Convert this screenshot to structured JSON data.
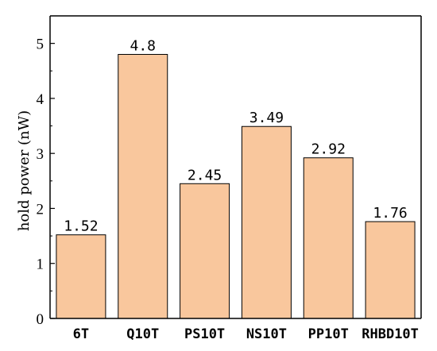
{
  "chart_data": {
    "type": "bar",
    "title": "",
    "xlabel": "",
    "ylabel": "hold power (nW)",
    "categories": [
      "6T",
      "Q10T",
      "PS10T",
      "NS10T",
      "PP10T",
      "RHBD10T"
    ],
    "values": [
      1.52,
      4.8,
      2.45,
      3.49,
      2.92,
      1.76
    ],
    "value_labels": [
      "1.52",
      "4.8",
      "2.45",
      "3.49",
      "2.92",
      "1.76"
    ],
    "ylim": [
      0,
      5.5
    ],
    "yticks": [
      0,
      1,
      2,
      3,
      4,
      5
    ],
    "grid": false,
    "legend": "none",
    "bar_color": "#f9c79d",
    "edge_color": "#000000"
  }
}
